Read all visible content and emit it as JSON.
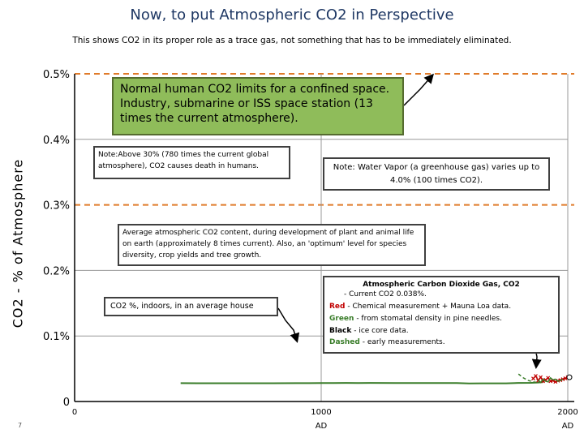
{
  "title": "Now, to put Atmospheric CO2 in Perspective",
  "subtitle": "This shows CO2 in its proper role as a trace gas, not something that has to be immediately eliminated.",
  "slide_number": "7",
  "colors": {
    "title": "#1f3864",
    "series_line": "#3a7d2a",
    "red": "#c00000",
    "green": "#3a7d2a",
    "dashed": "#3a7d2a",
    "limit_line": "#e07b2a",
    "box_green": "#8fbc5a"
  },
  "annotations": {
    "green_box": "Normal human CO2 limits for a confined space. Industry, submarine or ISS space station (13 times the current atmosphere).",
    "note_30": "Note:Above 30% (780 times the current global atmosphere), CO2 causes death in humans.",
    "note_water": "Note: Water Vapor (a greenhouse gas) varies up to 4.0% (100 times CO2).",
    "average": "Average atmospheric CO2 content, during development of plant and animal life on earth (approximately 8 times current). Also, an 'optimum' level for species diversity, crop yields and tree growth.",
    "indoors": "CO2 %, indoors, in an average house"
  },
  "legend": {
    "title": "Atmospheric Carbon Dioxide Gas, CO2",
    "current": "- Current CO2 0.038%.",
    "red_label": "Red",
    "red_text": " - Chemical measurement + Mauna Loa data.",
    "green_label": "Green",
    "green_text": " - from stomatal density in pine needles.",
    "black_label": "Black",
    "black_text": " - ice core data.",
    "dashed_label": "Dashed",
    "dashed_text": " - early measurements."
  },
  "chart_data": {
    "type": "line",
    "title": "Now, to put Atmospheric CO2 in Perspective",
    "ylabel": "CO2 - % of Atmosphere",
    "xlabel": "",
    "ylim": [
      0,
      0.5
    ],
    "xlim": [
      0,
      2000
    ],
    "y_ticks": [
      "0",
      "0.1%",
      "0.2%",
      "0.3%",
      "0.4%",
      "0.5%"
    ],
    "x_ticks": [
      {
        "value": 0,
        "label": "0",
        "sub": ""
      },
      {
        "value": 1000,
        "label": "1000",
        "sub": "AD"
      },
      {
        "value": 2000,
        "label": "2000",
        "sub": "AD"
      }
    ],
    "reference_lines": [
      {
        "label": "Normal human CO2 limits for a confined space",
        "value": 0.5
      },
      {
        "label": "Average atmospheric CO2 content",
        "value": 0.3
      }
    ],
    "series": [
      {
        "name": "Black",
        "x": [
          430,
          500,
          600,
          700,
          800,
          900,
          1000,
          1050,
          1100,
          1150,
          1200,
          1300,
          1400,
          1500,
          1550,
          1600,
          1650,
          1700,
          1750,
          1800,
          1850,
          1880,
          1900
        ],
        "values": [
          0.028,
          0.0279,
          0.0278,
          0.0278,
          0.0279,
          0.028,
          0.0281,
          0.0282,
          0.0283,
          0.0282,
          0.0283,
          0.0282,
          0.0281,
          0.0282,
          0.0281,
          0.0276,
          0.0277,
          0.0277,
          0.0277,
          0.0283,
          0.0285,
          0.029,
          0.0296
        ]
      },
      {
        "name": "Red",
        "x": [
          1860,
          1870,
          1880,
          1890,
          1900,
          1910,
          1920,
          1930,
          1940,
          1950,
          1960,
          1970,
          1980,
          1990,
          2000
        ],
        "values": [
          0.035,
          0.039,
          0.032,
          0.037,
          0.031,
          0.033,
          0.036,
          0.031,
          0.032,
          0.03,
          0.0317,
          0.0326,
          0.0339,
          0.0354,
          0.037
        ]
      },
      {
        "name": "Green",
        "x": [
          1880,
          1890,
          1900,
          1910,
          1920,
          1930,
          1940,
          1950,
          1960,
          1970,
          1980
        ],
        "values": [
          0.033,
          0.029,
          0.034,
          0.031,
          0.03,
          0.036,
          0.033,
          0.034,
          0.031,
          0.032,
          0.034
        ]
      },
      {
        "name": "Dashed",
        "x": [
          1800,
          1820,
          1840,
          1860,
          1880
        ],
        "values": [
          0.042,
          0.036,
          0.032,
          0.03,
          0.029
        ]
      }
    ]
  }
}
